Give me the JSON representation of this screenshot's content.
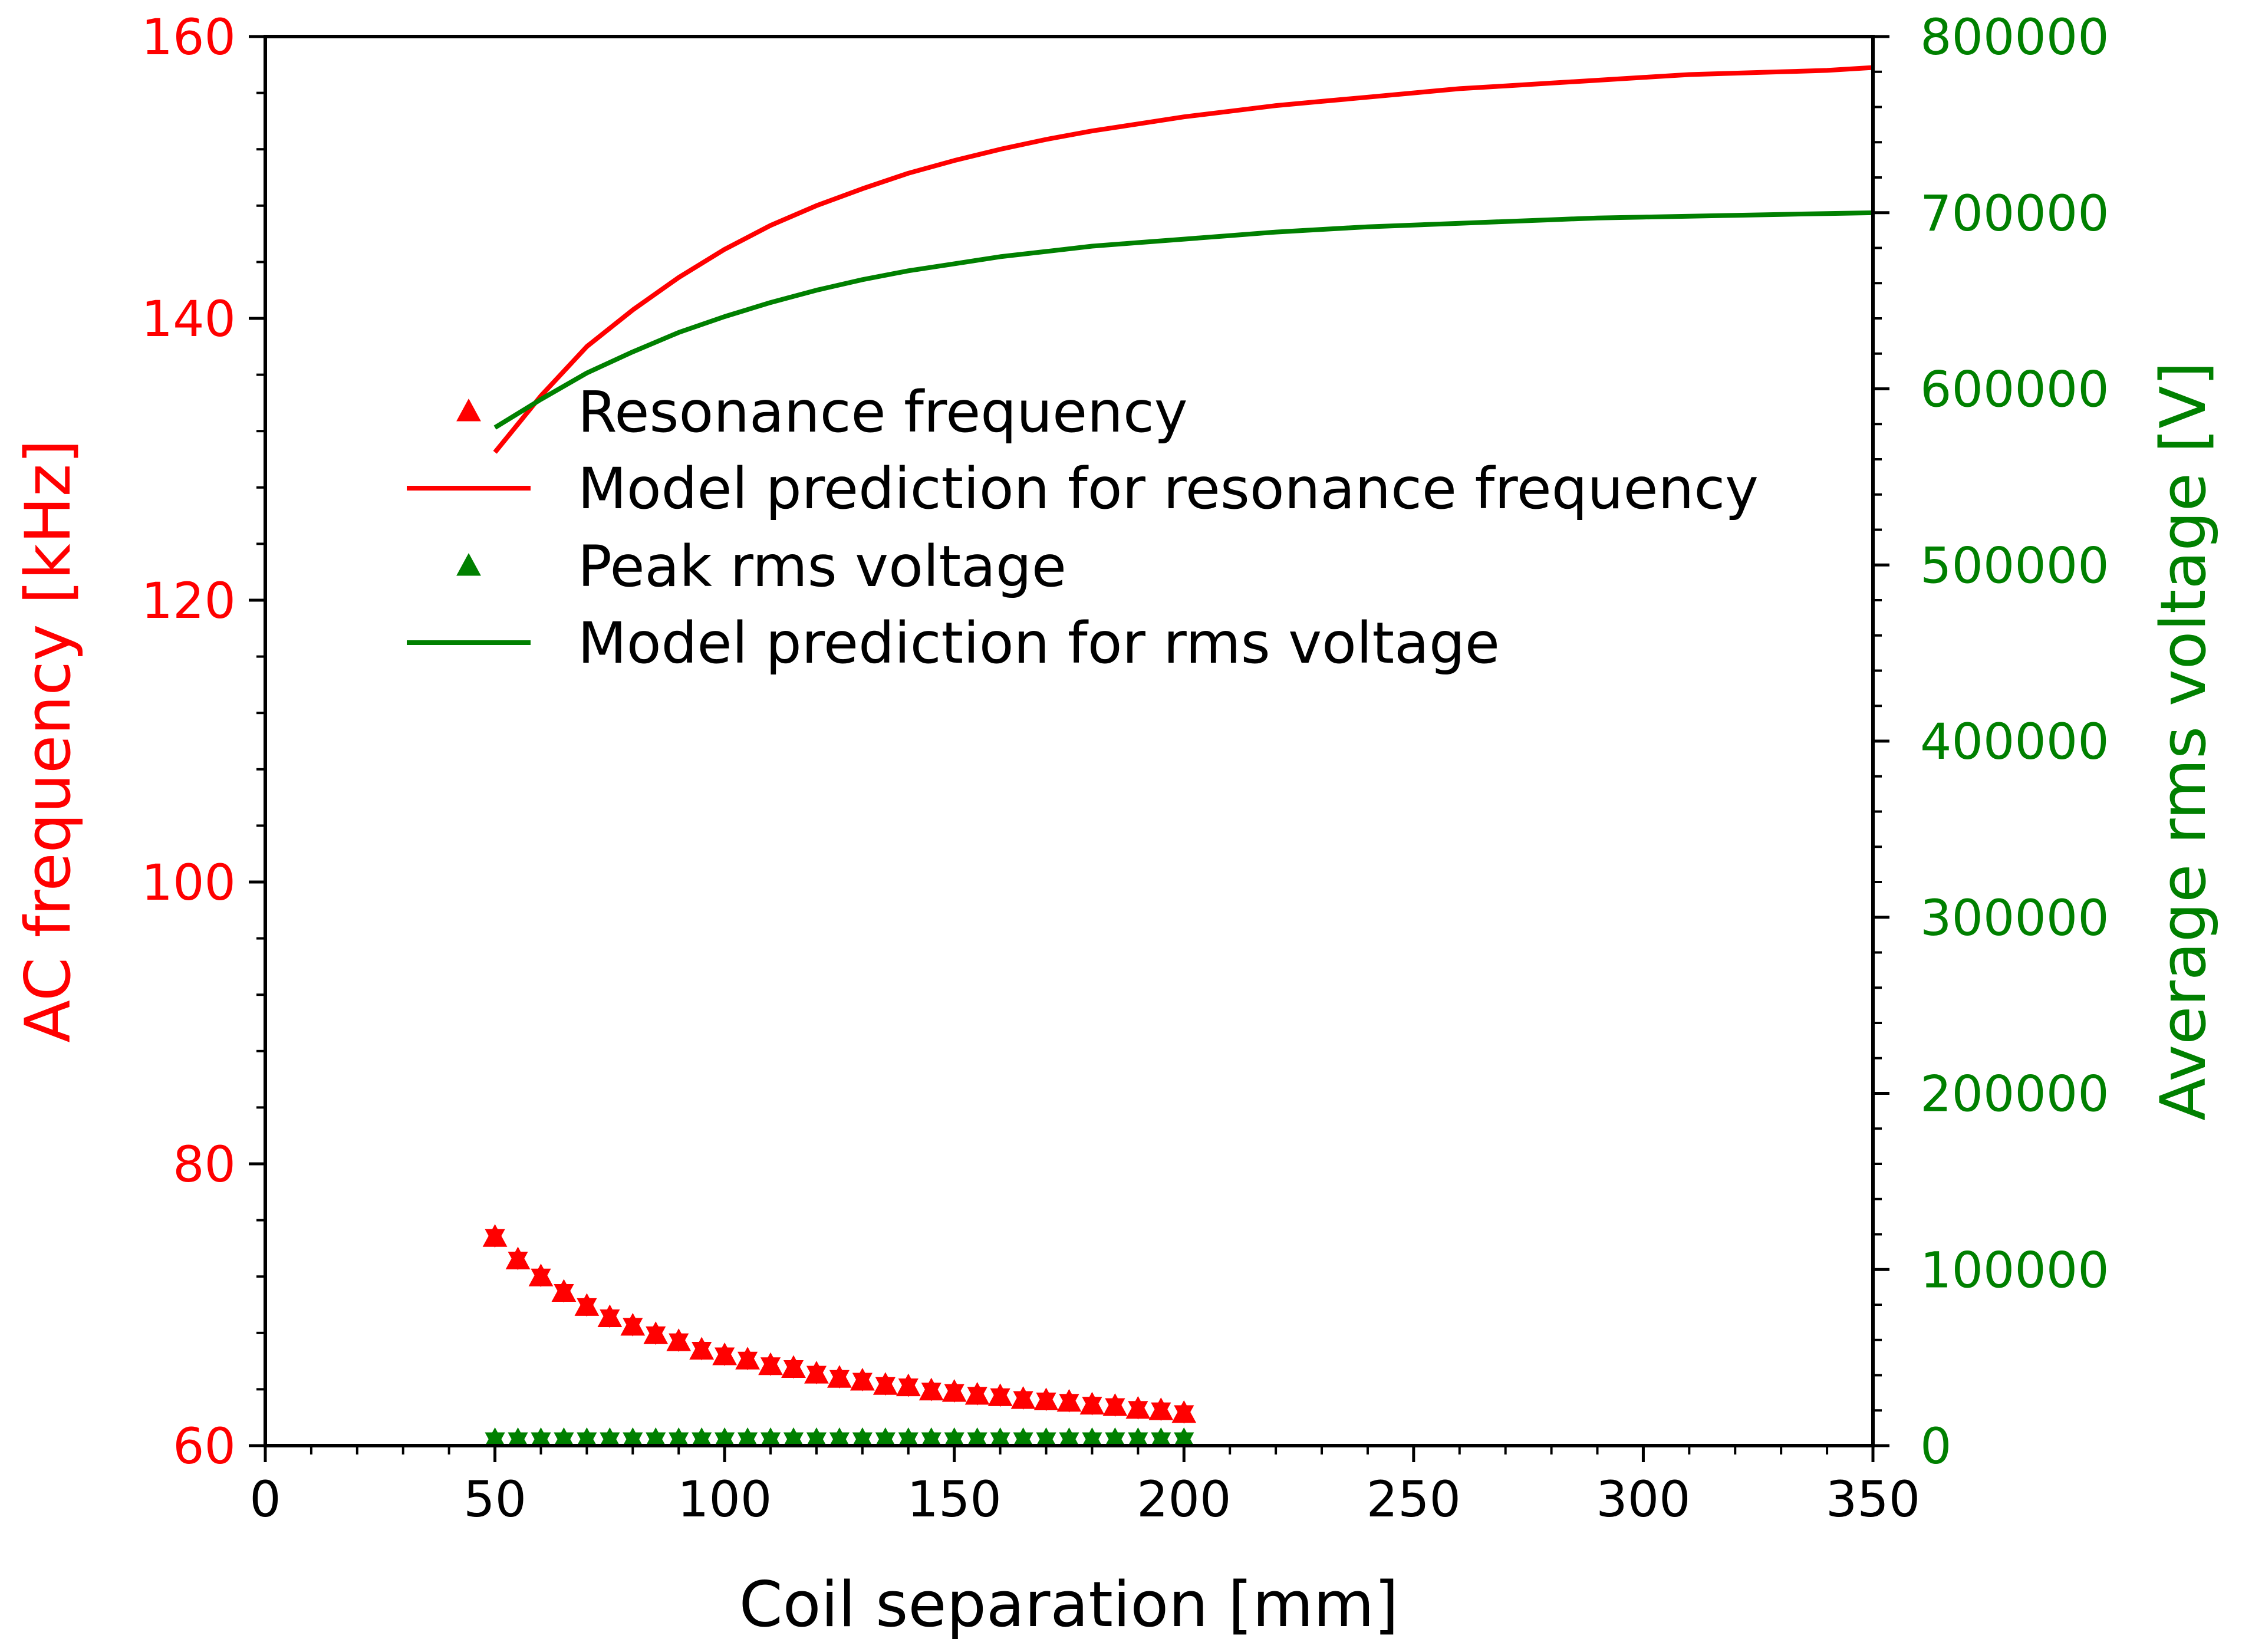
{
  "chart_data": {
    "type": "line",
    "title": "",
    "xlabel": "Coil separation [mm]",
    "ylabel_left": "AC frequency [kHz]",
    "ylabel_right": "Average rms voltage [V]",
    "xlim": [
      0,
      350
    ],
    "ylim_left": [
      60,
      160
    ],
    "ylim_right": [
      0,
      800000
    ],
    "x_ticks": [
      0,
      50,
      100,
      150,
      200,
      250,
      300,
      350
    ],
    "y_left_ticks": [
      60,
      80,
      100,
      120,
      140,
      160
    ],
    "y_right_ticks": [
      0,
      100000,
      200000,
      300000,
      400000,
      500000,
      600000,
      700000,
      800000
    ],
    "grid": false,
    "legend_position": "center-left",
    "colors": {
      "frequency": "#ff0000",
      "voltage": "#008000",
      "axes": "#000000"
    },
    "series": [
      {
        "name": "Resonance frequency",
        "kind": "scatter",
        "axis": "left",
        "marker": "triangle",
        "color": "#ff0000",
        "x": [
          50,
          55,
          60,
          65,
          70,
          75,
          80,
          85,
          90,
          95,
          100,
          105,
          110,
          115,
          120,
          125,
          130,
          135,
          140,
          145,
          150,
          155,
          160,
          165,
          170,
          175,
          180,
          185,
          190,
          195,
          200
        ],
        "y": [
          74.8,
          73.2,
          72.0,
          70.9,
          69.9,
          69.1,
          68.5,
          67.9,
          67.4,
          66.8,
          66.4,
          66.1,
          65.7,
          65.5,
          65.1,
          64.8,
          64.6,
          64.3,
          64.2,
          63.9,
          63.8,
          63.6,
          63.5,
          63.3,
          63.2,
          63.1,
          62.9,
          62.8,
          62.6,
          62.5,
          62.3
        ]
      },
      {
        "name": "Model prediction for resonance frequency",
        "kind": "line",
        "axis": "left",
        "color": "#ff0000",
        "x": [
          50,
          60,
          70,
          80,
          90,
          100,
          110,
          120,
          130,
          140,
          150,
          160,
          170,
          180,
          190,
          200,
          210,
          220,
          230,
          240,
          250,
          260,
          270,
          280,
          290,
          300,
          310,
          320,
          330,
          340,
          350
        ],
        "y": [
          130.5,
          134.5,
          138.0,
          140.6,
          142.9,
          144.9,
          146.6,
          148.0,
          149.2,
          150.3,
          151.2,
          152.0,
          152.7,
          153.3,
          153.8,
          154.3,
          154.7,
          155.1,
          155.4,
          155.7,
          156.0,
          156.3,
          156.5,
          156.7,
          156.9,
          157.1,
          157.3,
          157.4,
          157.5,
          157.6,
          157.8
        ]
      },
      {
        "name": "Peak rms voltage",
        "kind": "scatter",
        "axis": "right",
        "marker": "triangle",
        "color": "#008000",
        "x": [
          50,
          55,
          60,
          65,
          70,
          75,
          80,
          85,
          90,
          95,
          100,
          105,
          110,
          115,
          120,
          125,
          130,
          135,
          140,
          145,
          150,
          155,
          160,
          165,
          170,
          175,
          180,
          185,
          190,
          195,
          200
        ],
        "y": [
          3000,
          3000,
          3000,
          3000,
          3000,
          3000,
          3000,
          3000,
          3000,
          3000,
          3000,
          3000,
          3000,
          3000,
          3000,
          3000,
          3000,
          3000,
          3000,
          3000,
          3000,
          3000,
          3000,
          3000,
          3000,
          3000,
          3000,
          3000,
          3000,
          3000,
          3000
        ]
      },
      {
        "name": "Model prediction for rms voltage",
        "kind": "line",
        "axis": "right",
        "color": "#008000",
        "x": [
          50,
          60,
          70,
          80,
          90,
          100,
          110,
          120,
          130,
          140,
          150,
          160,
          170,
          180,
          190,
          200,
          210,
          220,
          230,
          240,
          250,
          260,
          270,
          280,
          290,
          300,
          310,
          320,
          330,
          340,
          350
        ],
        "y": [
          578000,
          594000,
          609000,
          621000,
          632000,
          641000,
          649000,
          656000,
          662000,
          667000,
          671000,
          675000,
          678000,
          681000,
          683000,
          685000,
          687000,
          689000,
          690500,
          692000,
          693000,
          694000,
          695000,
          696000,
          697000,
          697500,
          698000,
          698500,
          699000,
          699500,
          700000
        ]
      }
    ]
  }
}
